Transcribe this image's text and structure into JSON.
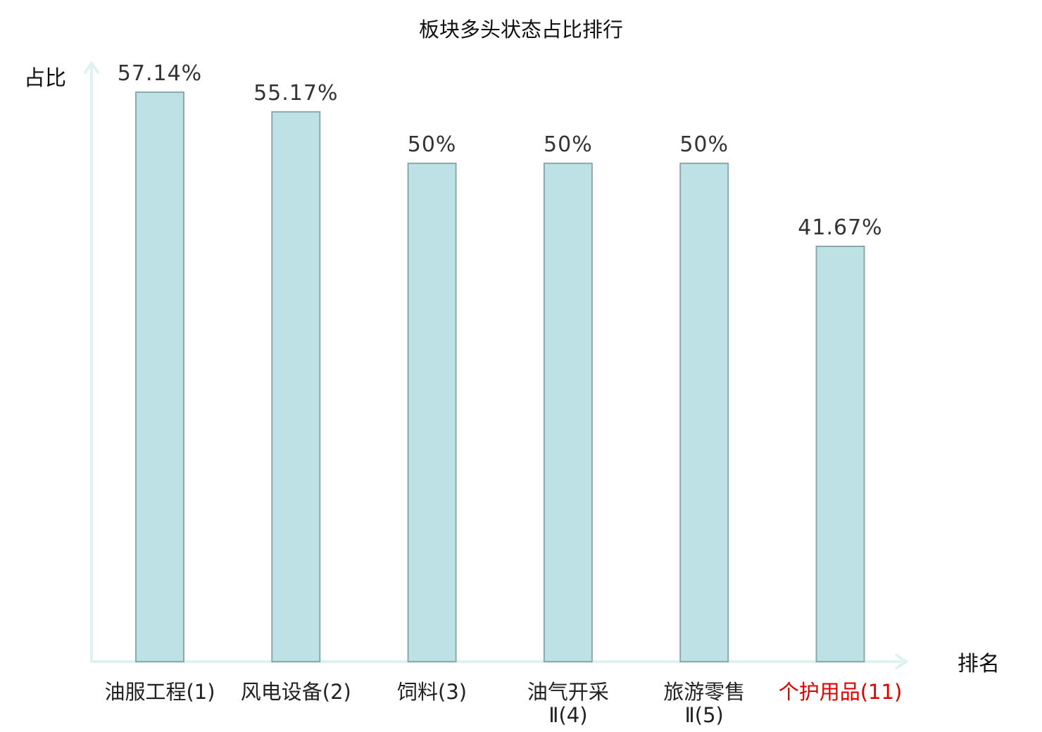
{
  "chart_data": {
    "type": "bar",
    "title": "板块多头状态占比排行",
    "ylabel": "占比",
    "xlabel": "排名",
    "categories": [
      {
        "name": "油服工程",
        "rank": "(1)",
        "lines": [
          "油服工程(1)"
        ],
        "highlight": false
      },
      {
        "name": "风电设备",
        "rank": "(2)",
        "lines": [
          "风电设备(2)"
        ],
        "highlight": false
      },
      {
        "name": "饲料",
        "rank": "(3)",
        "lines": [
          "饲料(3)"
        ],
        "highlight": false
      },
      {
        "name": "油气开采Ⅱ",
        "rank": "(4)",
        "lines": [
          "油气开采",
          "Ⅱ(4)"
        ],
        "highlight": false
      },
      {
        "name": "旅游零售Ⅱ",
        "rank": "(5)",
        "lines": [
          "旅游零售",
          "Ⅱ(5)"
        ],
        "highlight": false
      },
      {
        "name": "个护用品",
        "rank": "(11)",
        "lines": [
          "个护用品(11)"
        ],
        "highlight": true
      }
    ],
    "values": [
      57.14,
      55.17,
      50,
      50,
      50,
      41.67
    ],
    "value_labels": [
      "57.14%",
      "55.17%",
      "50%",
      "50%",
      "50%",
      "41.67%"
    ],
    "ylim": [
      0,
      57.14
    ],
    "grid": false,
    "colors": {
      "bar_fill": "#bde1e4",
      "bar_stroke": "#8aa9aa",
      "axis": "#dff2ef",
      "highlight_label": "#e00000",
      "label": "#222222",
      "value_label": "#333333"
    }
  }
}
